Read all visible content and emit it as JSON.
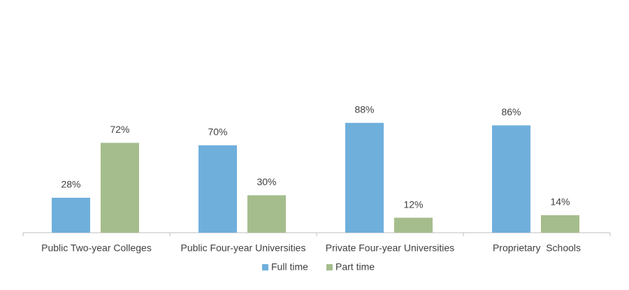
{
  "chart_data": {
    "type": "bar",
    "categories": [
      "Public Two-year Colleges",
      "Public Four-year Universities",
      "Private Four-year Universities",
      "Proprietary  Schools"
    ],
    "series": [
      {
        "name": "Full time",
        "color": "#6fafdc",
        "values": [
          28,
          70,
          88,
          86
        ],
        "value_labels": [
          "28%",
          "70%",
          "88%",
          "86%"
        ]
      },
      {
        "name": "Part time",
        "color": "#a5bd8d",
        "values": [
          72,
          30,
          12,
          14
        ],
        "value_labels": [
          "72%",
          "30%",
          "12%",
          "14%"
        ]
      }
    ],
    "legend": "bottom"
  }
}
